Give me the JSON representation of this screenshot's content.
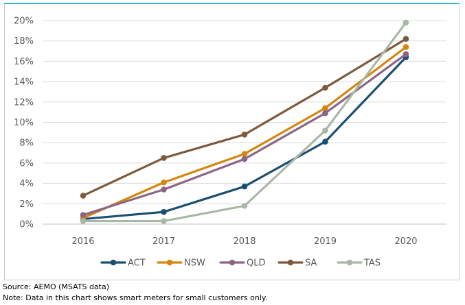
{
  "chart_data": {
    "type": "line",
    "title": "",
    "xlabel": "",
    "ylabel": "",
    "x": [
      "2016",
      "2017",
      "2018",
      "2019",
      "2020"
    ],
    "ylim": [
      0,
      20
    ],
    "yticks": [
      "0%",
      "2%",
      "4%",
      "6%",
      "8%",
      "10%",
      "12%",
      "14%",
      "16%",
      "18%",
      "20%"
    ],
    "grid": "horizontal",
    "legend_position": "bottom",
    "series": [
      {
        "name": "ACT",
        "color": "#1b4f72",
        "values": [
          0.5,
          1.2,
          3.7,
          8.1,
          16.4
        ]
      },
      {
        "name": "NSW",
        "color": "#d4870d",
        "values": [
          0.6,
          4.1,
          6.9,
          11.4,
          17.4
        ]
      },
      {
        "name": "QLD",
        "color": "#8c6585",
        "values": [
          0.9,
          3.4,
          6.4,
          10.9,
          16.7
        ]
      },
      {
        "name": "SA",
        "color": "#7d5a3c",
        "values": [
          2.8,
          6.5,
          8.8,
          13.4,
          18.2
        ]
      },
      {
        "name": "TAS",
        "color": "#a9b8a6",
        "values": [
          0.3,
          0.3,
          1.8,
          9.2,
          19.8
        ]
      }
    ]
  },
  "footnotes": {
    "source": "Source: AEMO (MSATS data)",
    "note": "Note: Data in this chart shows smart meters for small customers only."
  }
}
